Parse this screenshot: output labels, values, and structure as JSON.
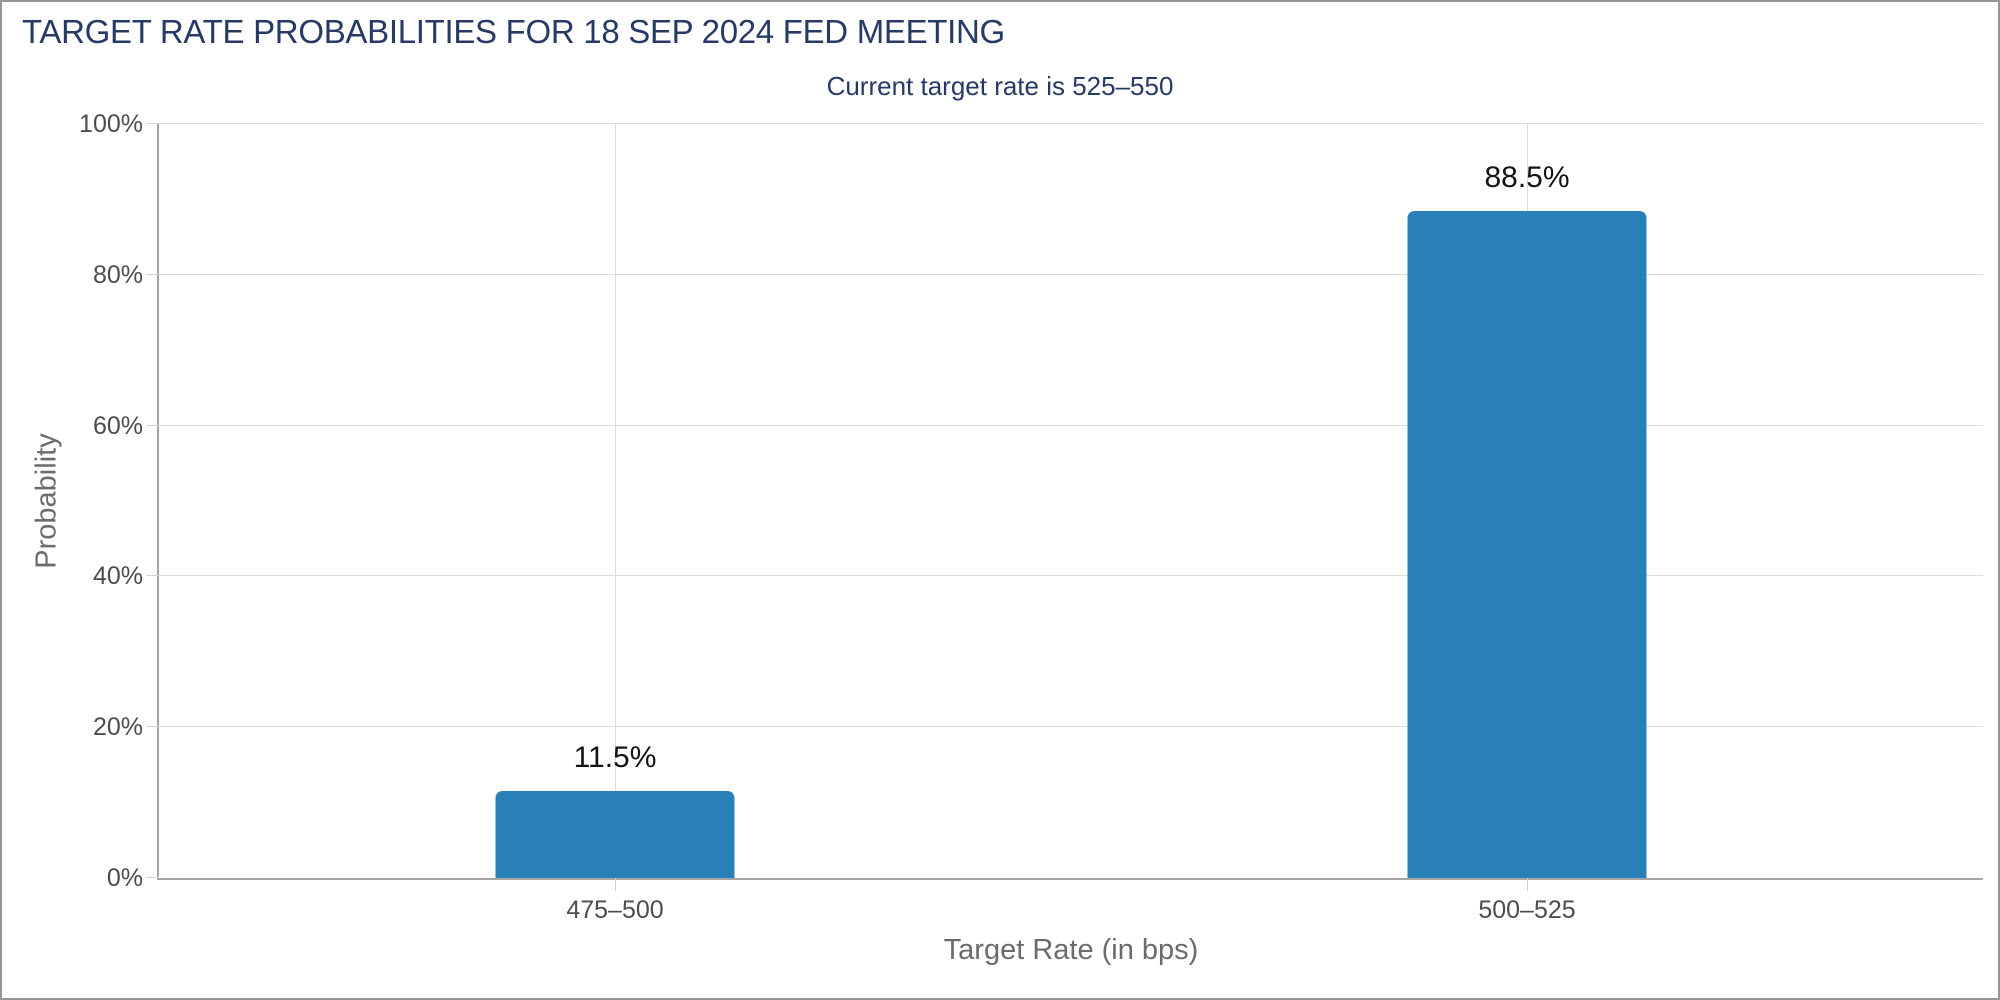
{
  "header": {
    "title": "TARGET RATE PROBABILITIES FOR 18 SEP 2024 FED MEETING",
    "subtitle": "Current target rate is 525–550"
  },
  "chart_data": {
    "type": "bar",
    "title": "TARGET RATE PROBABILITIES FOR 18 SEP 2024 FED MEETING",
    "subtitle": "Current target rate is 525–550",
    "categories": [
      "475–500",
      "500–525"
    ],
    "values": [
      11.5,
      88.5
    ],
    "value_labels": [
      "11.5%",
      "88.5%"
    ],
    "xlabel": "Target Rate (in bps)",
    "ylabel": "Probability",
    "ylim": [
      0,
      100
    ],
    "yticks": [
      0,
      20,
      40,
      60,
      80,
      100
    ],
    "ytick_labels": [
      "0%",
      "20%",
      "40%",
      "60%",
      "80%",
      "100%"
    ],
    "grid": true,
    "legend": "none",
    "bar_color": "#2980b9"
  },
  "colors": {
    "title_navy": "#273a66",
    "bar_blue": "#2980b9",
    "value_label": "#141414",
    "tick_label": "#4d4d4d",
    "axis_title": "#6b6b6b",
    "gridline": "#dcdcdc",
    "axis_line": "#a5a5a5",
    "frame_border": "#959595"
  }
}
